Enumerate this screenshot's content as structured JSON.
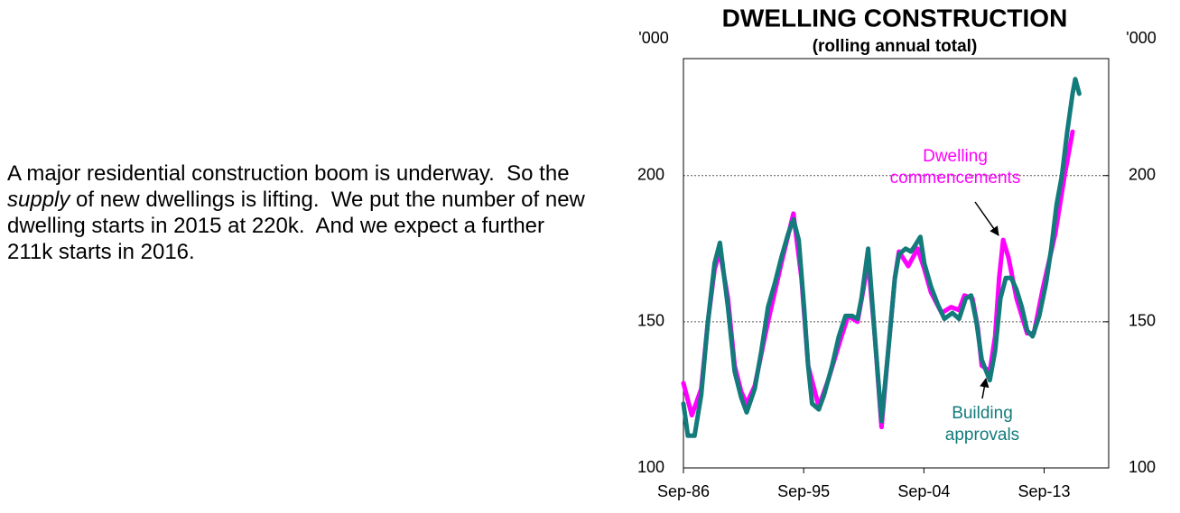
{
  "paragraph": [
    "A major residential construction boom is underway.  So the ",
    "supply",
    " of new dwellings is lifting.  We put the number of new dwelling starts in 2015 at 220k.  And we expect a further 211k starts in 2016."
  ],
  "chart_data": {
    "type": "line",
    "title": "DWELLING CONSTRUCTION",
    "subtitle": "(rolling annual total)",
    "y_unit": "'000",
    "y2_unit": "'000",
    "xlim": [
      1986.67,
      2018.5
    ],
    "xticks": [
      {
        "value": 1986.67,
        "label": "Sep-86"
      },
      {
        "value": 1995.67,
        "label": "Sep-95"
      },
      {
        "value": 2004.67,
        "label": "Sep-04"
      },
      {
        "value": 2013.67,
        "label": "Sep-13"
      }
    ],
    "ylim": [
      100,
      240
    ],
    "yticks": [
      100,
      150,
      200
    ],
    "y2lim": [
      100,
      240
    ],
    "y2ticks": [
      100,
      150,
      200
    ],
    "grid": true,
    "series": [
      {
        "name": "Dwelling commencements",
        "color": "#ff00ff",
        "x": [
          1986.67,
          1987.3,
          1988.0,
          1988.5,
          1989.0,
          1989.4,
          1990.0,
          1990.5,
          1991.0,
          1991.4,
          1992.0,
          1993.0,
          1994.0,
          1994.9,
          1995.5,
          1996.0,
          1996.8,
          1997.5,
          1998.5,
          1999.0,
          1999.7,
          2000.1,
          2000.5,
          2001.0,
          2001.5,
          2002.0,
          2002.5,
          2002.8,
          2003.5,
          2004.2,
          2004.7,
          2005.2,
          2006.0,
          2006.7,
          2007.3,
          2007.7,
          2008.3,
          2008.7,
          2009.0,
          2009.6,
          2010.0,
          2010.3,
          2010.6,
          2011.0,
          2011.6,
          2012.4,
          2012.9,
          2013.6,
          2014.5,
          2015.2,
          2015.8
        ],
        "values": [
          129,
          118,
          127,
          150,
          168,
          174,
          158,
          135,
          126,
          122,
          128,
          150,
          170,
          187,
          165,
          135,
          121,
          130,
          145,
          152,
          150,
          160,
          171,
          145,
          114,
          140,
          165,
          174,
          169,
          175,
          168,
          160,
          153,
          155,
          154,
          159,
          158,
          148,
          135,
          133,
          145,
          165,
          178,
          172,
          158,
          146,
          146,
          162,
          180,
          200,
          215
        ]
      },
      {
        "name": "Building approvals",
        "color": "#137b7b",
        "x": [
          1986.67,
          1987.0,
          1987.5,
          1988.0,
          1988.5,
          1989.0,
          1989.4,
          1990.0,
          1990.5,
          1991.0,
          1991.4,
          1992.0,
          1992.5,
          1993.0,
          1993.5,
          1994.0,
          1994.5,
          1994.9,
          1995.3,
          1995.7,
          1996.0,
          1996.3,
          1996.8,
          1997.2,
          1997.8,
          1998.3,
          1998.8,
          1999.3,
          1999.7,
          2000.0,
          2000.5,
          2001.0,
          2001.5,
          2002.0,
          2002.5,
          2002.8,
          2003.3,
          2003.7,
          2004.0,
          2004.4,
          2004.7,
          2005.2,
          2005.7,
          2006.2,
          2006.8,
          2007.3,
          2007.8,
          2008.2,
          2008.6,
          2009.0,
          2009.6,
          2010.0,
          2010.4,
          2010.8,
          2011.2,
          2011.6,
          2012.0,
          2012.4,
          2012.8,
          2013.3,
          2013.8,
          2014.2,
          2014.6,
          2015.0,
          2015.4,
          2015.8,
          2016.0,
          2016.3
        ],
        "values": [
          122,
          111,
          111,
          125,
          150,
          170,
          177,
          155,
          133,
          124,
          119,
          127,
          140,
          155,
          163,
          172,
          180,
          185,
          178,
          155,
          135,
          122,
          120,
          125,
          135,
          145,
          152,
          152,
          151,
          158,
          175,
          145,
          116,
          140,
          165,
          173,
          175,
          174,
          176,
          179,
          170,
          162,
          156,
          151,
          153,
          151,
          158,
          159,
          150,
          137,
          130,
          140,
          158,
          165,
          165,
          161,
          155,
          147,
          145,
          152,
          163,
          175,
          190,
          200,
          215,
          228,
          233,
          228
        ]
      }
    ],
    "annotations": [
      [
        "Dwelling",
        "commencements"
      ],
      [
        "Building",
        "approvals"
      ]
    ]
  }
}
